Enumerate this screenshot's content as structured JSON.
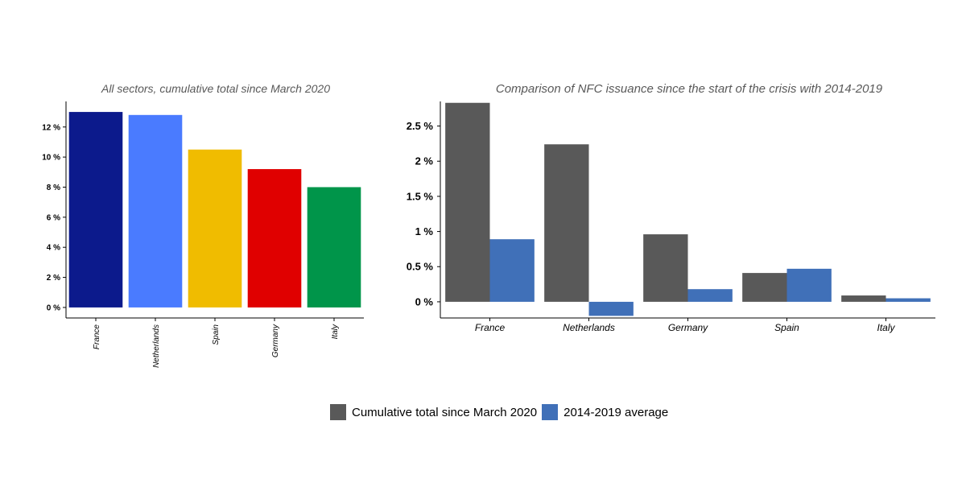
{
  "chart_data": [
    {
      "type": "bar",
      "title": "All sectors, cumulative total since March 2020",
      "categories": [
        "France",
        "Netherlands",
        "Spain",
        "Germany",
        "Italy"
      ],
      "values": [
        13.0,
        12.8,
        10.5,
        9.2,
        8.0
      ],
      "bar_colors": [
        "#0c1a8c",
        "#4a7bff",
        "#f0bc00",
        "#e00000",
        "#00954a"
      ],
      "y_ticks": [
        0,
        2,
        4,
        6,
        8,
        10,
        12
      ],
      "y_tick_labels": [
        "0 %",
        "2 %",
        "4 %",
        "6 %",
        "8 %",
        "10 %",
        "12 %"
      ],
      "ylim": [
        -0.7,
        13.7
      ],
      "xlabel": "",
      "ylabel": "",
      "grid": false
    },
    {
      "type": "bar",
      "title": "Comparison of NFC issuance since the start of the crisis with 2014-2019",
      "categories": [
        "France",
        "Netherlands",
        "Germany",
        "Spain",
        "Italy"
      ],
      "series": [
        {
          "name": "Cumulative total since March 2020",
          "values": [
            2.83,
            2.24,
            0.96,
            0.41,
            0.09
          ],
          "color": "#595959"
        },
        {
          "name": "2014-2019 average",
          "values": [
            0.89,
            -0.2,
            0.18,
            0.47,
            0.05
          ],
          "color": "#4070b8"
        }
      ],
      "y_ticks": [
        0,
        0.5,
        1,
        1.5,
        2,
        2.5
      ],
      "y_tick_labels": [
        "0 %",
        "0.5 %",
        "1 %",
        "1.5 %",
        "2 %",
        "2.5 %"
      ],
      "ylim": [
        -0.23,
        2.85
      ],
      "xlabel": "",
      "ylabel": "",
      "grid": false,
      "legend_position": "bottom"
    }
  ],
  "legend": {
    "items": [
      {
        "label": "Cumulative total since March 2020",
        "color": "#595959"
      },
      {
        "label": "2014-2019 average",
        "color": "#4070b8"
      }
    ]
  }
}
